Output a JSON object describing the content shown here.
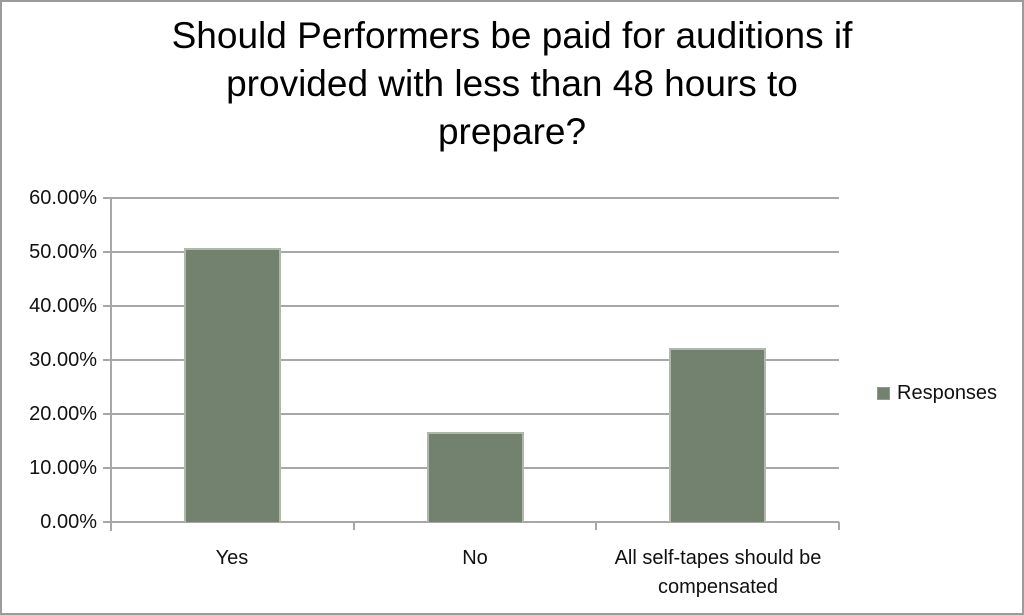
{
  "chart_data": {
    "type": "bar",
    "title": "Should Performers be paid for auditions if provided with less than 48 hours to prepare?",
    "title_lines": [
      "Should Performers be paid for auditions if",
      "provided with less than 48 hours to",
      "prepare?"
    ],
    "categories": [
      "Yes",
      "No",
      "All self-tapes should be compensated"
    ],
    "series": [
      {
        "name": "Responses",
        "values": [
          50.8,
          16.7,
          32.3
        ]
      }
    ],
    "ylim": [
      0,
      60
    ],
    "ytick_step": 10,
    "ytick_labels": [
      "0.00%",
      "10.00%",
      "20.00%",
      "30.00%",
      "40.00%",
      "50.00%",
      "60.00%"
    ],
    "grid": true,
    "legend_position": "right",
    "colors": {
      "bar_fill": "#72826E",
      "bar_border": "#afb8a9",
      "gridline": "#a7a7a7",
      "axis": "#a7a7a7",
      "text": "#111111",
      "frame_border": "#9b9b9b",
      "background": "#ffffff"
    }
  }
}
